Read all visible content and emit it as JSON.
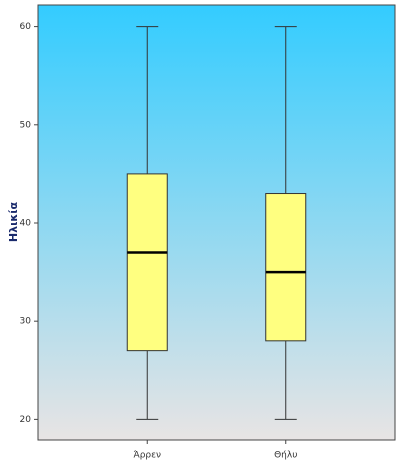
{
  "chart_data": {
    "type": "box",
    "y_label": "Ηλικία",
    "categories": [
      "Άρρεν",
      "Θήλυ"
    ],
    "min": [
      20,
      20
    ],
    "q1": [
      27,
      28
    ],
    "median": [
      37,
      35
    ],
    "q3": [
      45,
      43
    ],
    "max": [
      60,
      60
    ],
    "color": "#ffff80",
    "ylim": [
      17.9,
      62.2
    ],
    "yticks": [
      20,
      30,
      40,
      50,
      60
    ]
  }
}
